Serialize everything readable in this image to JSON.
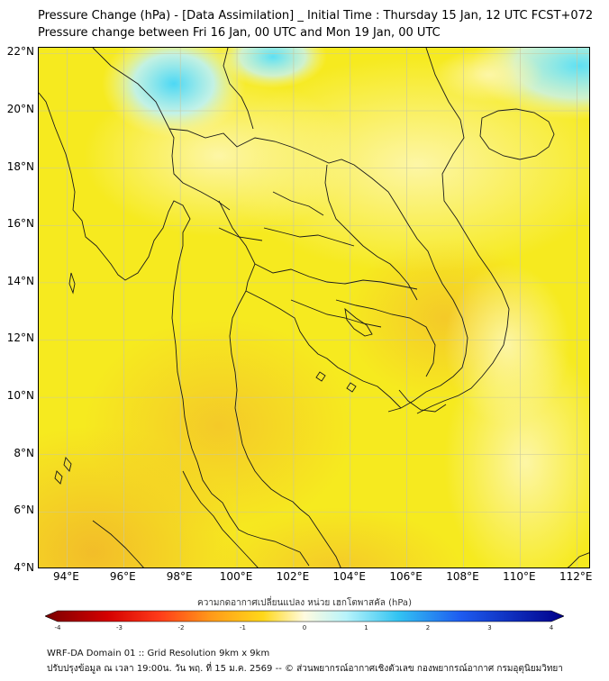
{
  "header": {
    "title_line1": "Pressure Change (hPa) - [Data Assimilation] _ Initial Time : Thursday 15 Jan, 12 UTC FCST+072",
    "title_line2": "Pressure change between Fri 16 Jan, 00 UTC and Mon 19 Jan, 00 UTC"
  },
  "map": {
    "lat_labels": [
      "22°N",
      "20°N",
      "18°N",
      "16°N",
      "14°N",
      "12°N",
      "10°N",
      "8°N",
      "6°N",
      "4°N"
    ],
    "lon_labels": [
      "94°E",
      "96°E",
      "98°E",
      "100°E",
      "102°E",
      "104°E",
      "106°E",
      "108°E",
      "110°E",
      "112°E"
    ],
    "lat_range": [
      4,
      22.2
    ],
    "lon_range": [
      93,
      112.5
    ],
    "field_color": "#f6ea1f",
    "gridlines": true
  },
  "colorbar": {
    "label": "ความกดอากาศเปลี่ยนแปลง หน่วย เฮกโตพาสคัล (hPa)",
    "ticks": [
      "-4",
      "-3",
      "-2",
      "-1",
      "0",
      "1",
      "2",
      "3",
      "4"
    ],
    "range": [
      -4,
      4
    ]
  },
  "footer": {
    "line1": "WRF-DA Domain 01 :: Grid Resolution 9km x 9km",
    "line2": "ปรับปรุงข้อมูล ณ เวลา 19:00น. วัน พฤ. ที่ 15 ม.ค. 2569 -- © ส่วนพยากรณ์อากาศเชิงตัวเลข กองพยากรณ์อากาศ กรมอุตุนิยมวิทยา"
  }
}
